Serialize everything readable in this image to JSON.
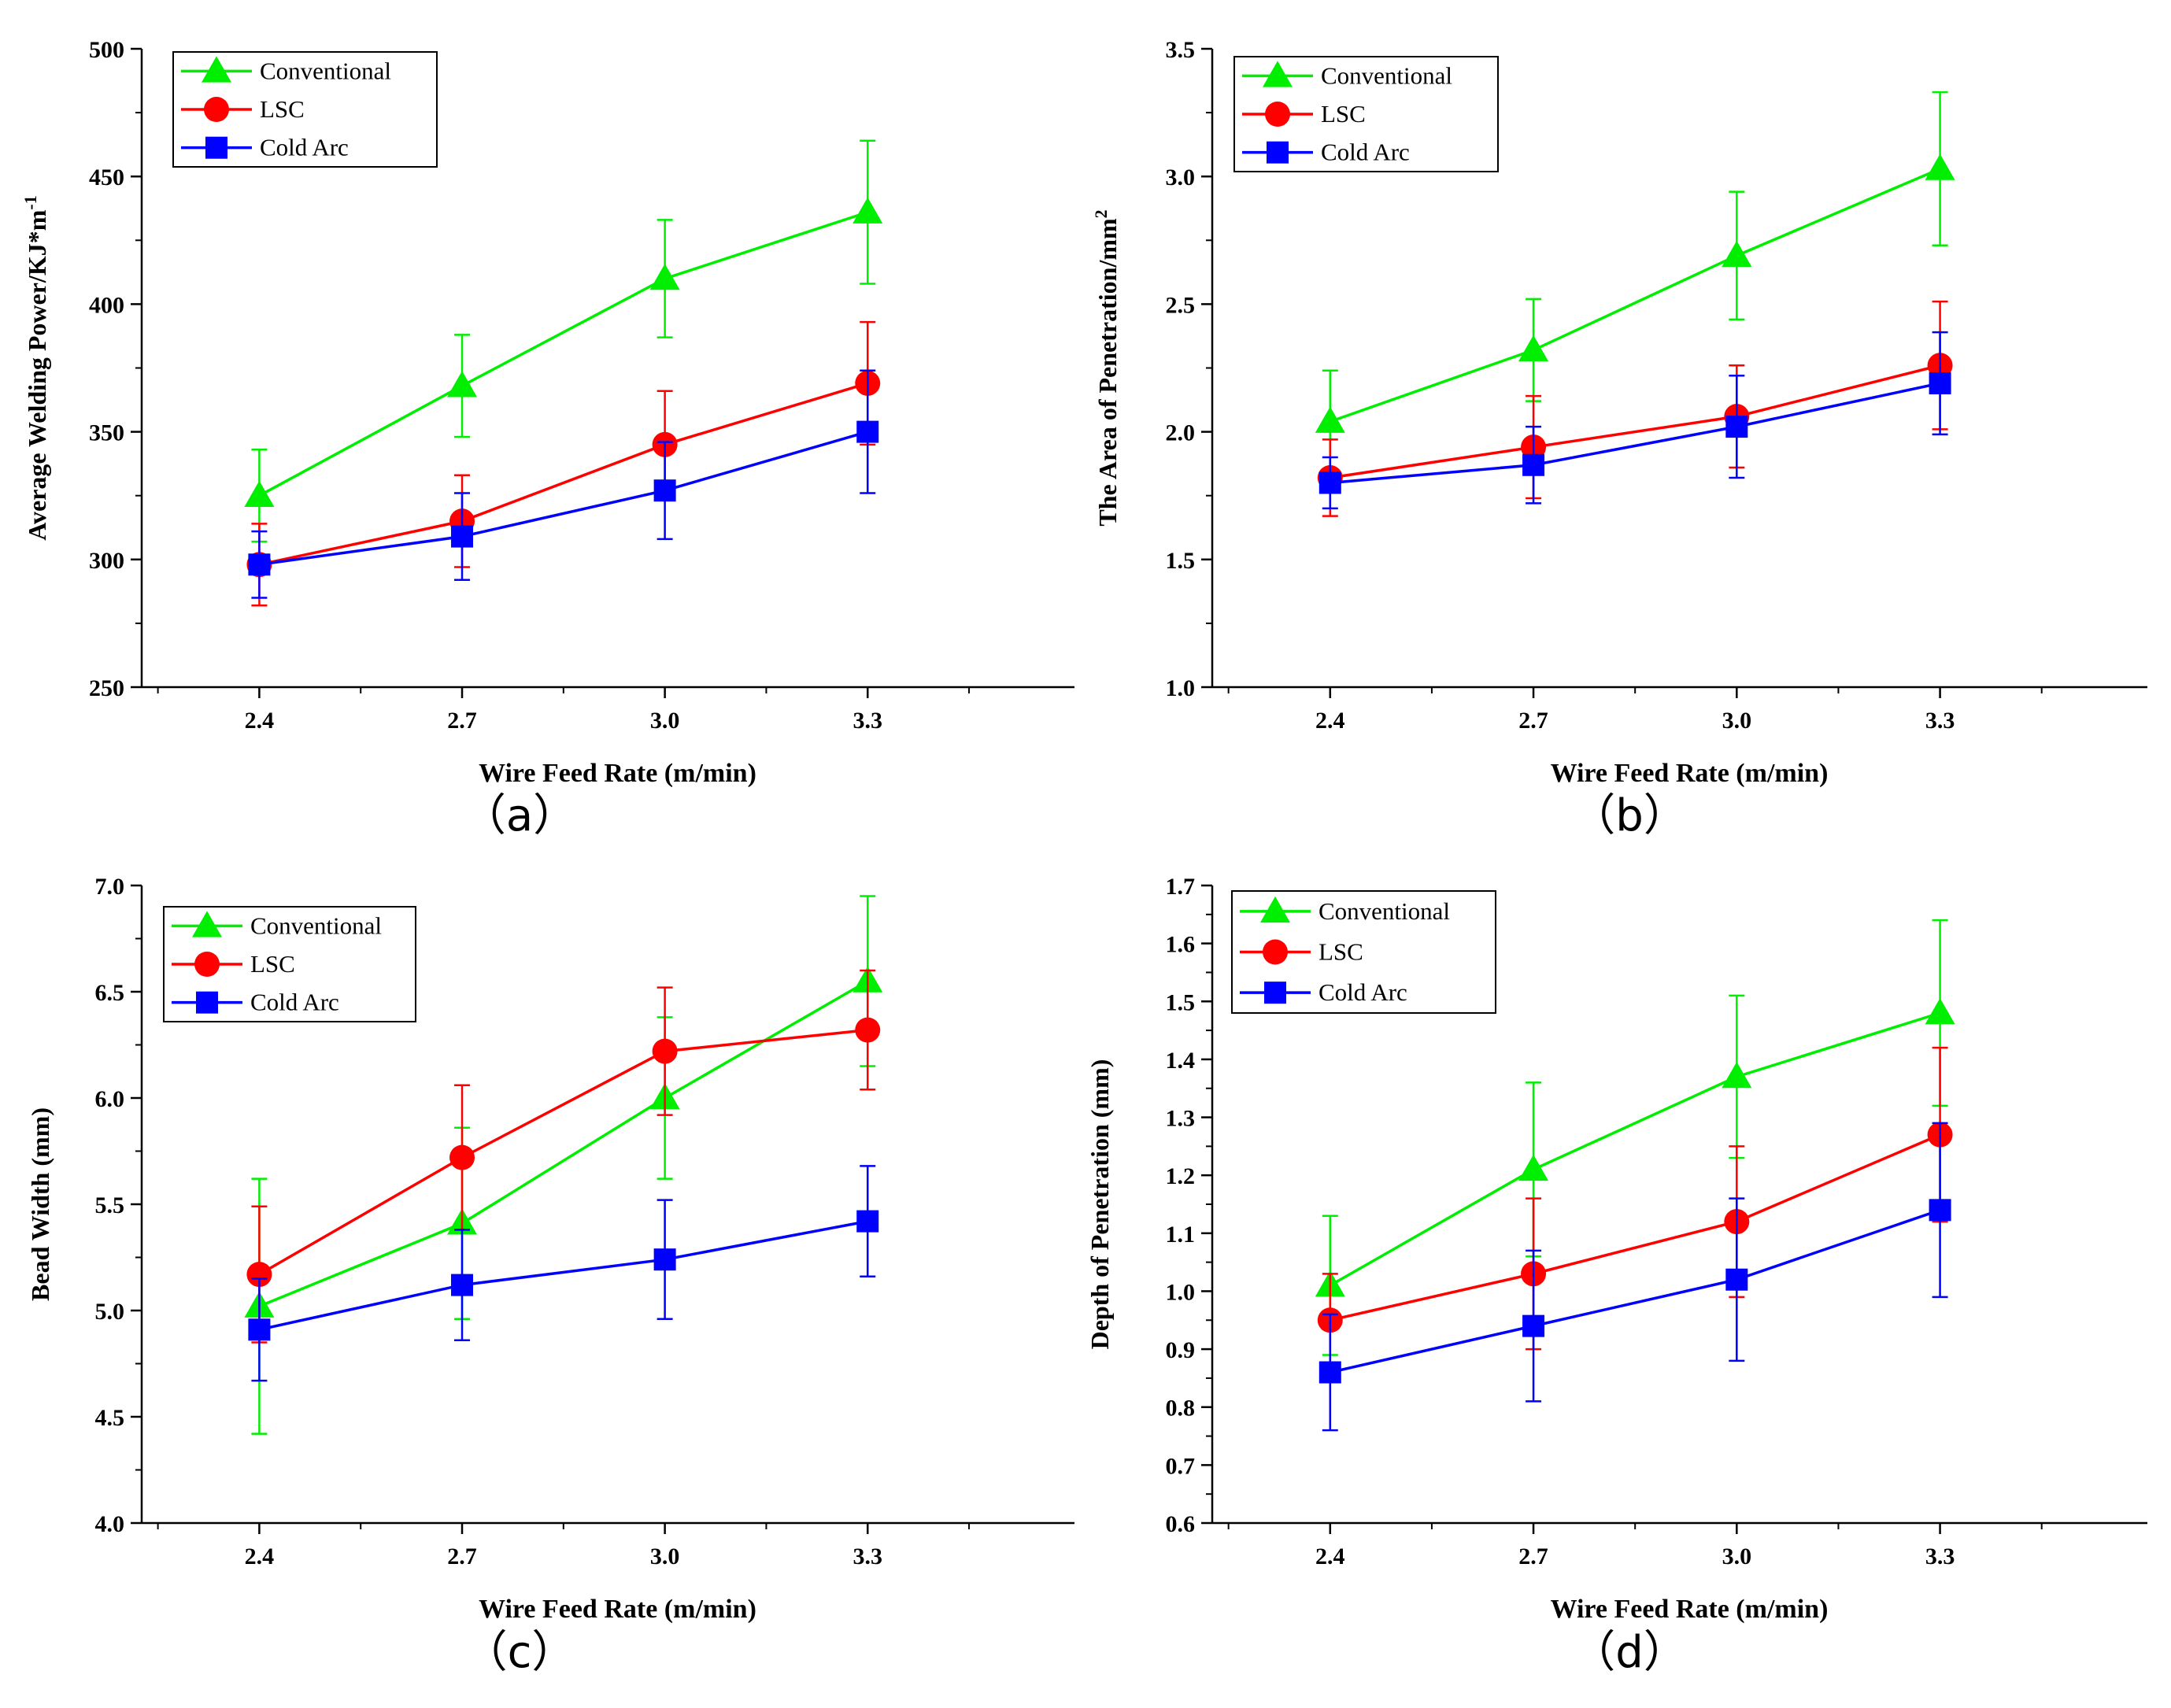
{
  "chart_data": [
    {
      "type": "line",
      "panel_label": "（a）",
      "xlabel": "Wire Feed Rate (m/min)",
      "ylabel": "Average Welding Power/KJ*m",
      "ylabel_sup": "-1",
      "categories": [
        "2.4",
        "2.7",
        "3.0",
        "3.3"
      ],
      "ylim": [
        250,
        500
      ],
      "yticks": [
        "250",
        "300",
        "350",
        "400",
        "450",
        "500"
      ],
      "legend_position": "top-left",
      "series": [
        {
          "name": "Conventional",
          "color": "#00ee00",
          "marker": "triangle",
          "values": [
            325,
            368,
            410,
            436
          ],
          "error": [
            18,
            20,
            23,
            28
          ]
        },
        {
          "name": "LSC",
          "color": "#ff0000",
          "marker": "circle",
          "values": [
            298,
            315,
            345,
            369
          ],
          "error": [
            16,
            18,
            21,
            24
          ]
        },
        {
          "name": "Cold Arc",
          "color": "#0000ff",
          "marker": "square",
          "values": [
            298,
            309,
            327,
            350
          ],
          "error": [
            13,
            17,
            19,
            24
          ]
        }
      ]
    },
    {
      "type": "line",
      "panel_label": "（b）",
      "xlabel": "Wire Feed Rate (m/min)",
      "ylabel": "The Area of Penetration/mm",
      "ylabel_sup": "2",
      "categories": [
        "2.4",
        "2.7",
        "3.0",
        "3.3"
      ],
      "ylim": [
        1.0,
        3.5
      ],
      "yticks": [
        "1.0",
        "1.5",
        "2.0",
        "2.5",
        "3.0",
        "3.5"
      ],
      "legend_position": "top-left",
      "series": [
        {
          "name": "Conventional",
          "color": "#00ee00",
          "marker": "triangle",
          "values": [
            2.04,
            2.32,
            2.69,
            3.03
          ],
          "error": [
            0.2,
            0.2,
            0.25,
            0.3
          ]
        },
        {
          "name": "LSC",
          "color": "#ff0000",
          "marker": "circle",
          "values": [
            1.82,
            1.94,
            2.06,
            2.26
          ],
          "error": [
            0.15,
            0.2,
            0.2,
            0.25
          ]
        },
        {
          "name": "Cold Arc",
          "color": "#0000ff",
          "marker": "square",
          "values": [
            1.8,
            1.87,
            2.02,
            2.19
          ],
          "error": [
            0.1,
            0.15,
            0.2,
            0.2
          ]
        }
      ]
    },
    {
      "type": "line",
      "panel_label": "（c）",
      "xlabel": "Wire Feed Rate (m/min)",
      "ylabel": "Bead Width (mm)",
      "ylabel_sup": "",
      "categories": [
        "2.4",
        "2.7",
        "3.0",
        "3.3"
      ],
      "ylim": [
        4.0,
        7.0
      ],
      "yticks": [
        "4.0",
        "4.5",
        "5.0",
        "5.5",
        "6.0",
        "6.5",
        "7.0"
      ],
      "legend_position": "top-left",
      "series": [
        {
          "name": "Conventional",
          "color": "#00ee00",
          "marker": "triangle",
          "values": [
            5.02,
            5.41,
            6.0,
            6.55
          ],
          "error": [
            0.6,
            0.45,
            0.38,
            0.4
          ]
        },
        {
          "name": "LSC",
          "color": "#ff0000",
          "marker": "circle",
          "values": [
            5.17,
            5.72,
            6.22,
            6.32
          ],
          "error": [
            0.32,
            0.34,
            0.3,
            0.28
          ]
        },
        {
          "name": "Cold Arc",
          "color": "#0000ff",
          "marker": "square",
          "values": [
            4.91,
            5.12,
            5.24,
            5.42
          ],
          "error": [
            0.24,
            0.26,
            0.28,
            0.26
          ]
        }
      ]
    },
    {
      "type": "line",
      "panel_label": "（d）",
      "xlabel": "Wire Feed Rate (m/min)",
      "ylabel": "Depth of Penetration (mm)",
      "ylabel_sup": "",
      "categories": [
        "2.4",
        "2.7",
        "3.0",
        "3.3"
      ],
      "ylim": [
        0.6,
        1.7
      ],
      "yticks": [
        "0.6",
        "0.7",
        "0.8",
        "0.9",
        "1.0",
        "1.1",
        "1.2",
        "1.3",
        "1.4",
        "1.5",
        "1.6",
        "1.7"
      ],
      "legend_position": "top-left",
      "series": [
        {
          "name": "Conventional",
          "color": "#00ee00",
          "marker": "triangle",
          "values": [
            1.01,
            1.21,
            1.37,
            1.48
          ],
          "error": [
            0.12,
            0.15,
            0.14,
            0.16
          ]
        },
        {
          "name": "LSC",
          "color": "#ff0000",
          "marker": "circle",
          "values": [
            0.95,
            1.03,
            1.12,
            1.27
          ],
          "error": [
            0.08,
            0.13,
            0.13,
            0.15
          ]
        },
        {
          "name": "Cold Arc",
          "color": "#0000ff",
          "marker": "square",
          "values": [
            0.86,
            0.94,
            1.02,
            1.14
          ],
          "error": [
            0.1,
            0.13,
            0.14,
            0.15
          ]
        }
      ]
    }
  ]
}
